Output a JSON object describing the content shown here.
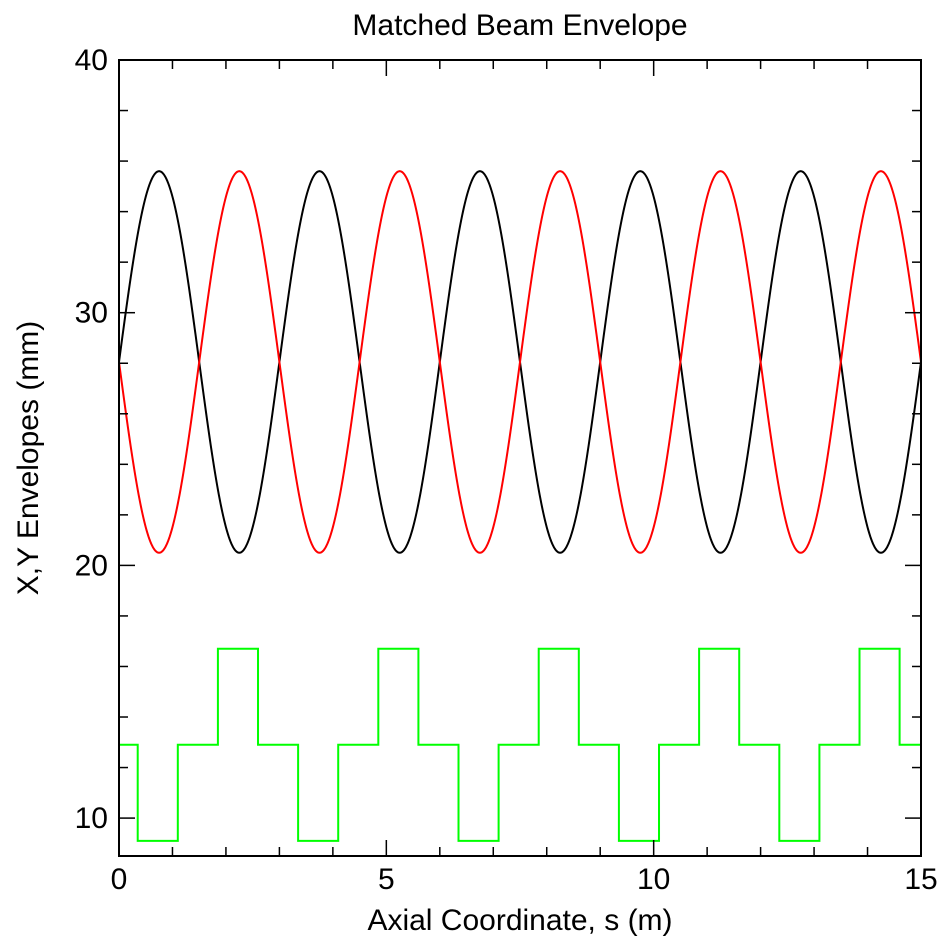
{
  "chart_data": {
    "type": "line",
    "title": "Matched Beam Envelope",
    "xlabel": "Axial Coordinate, s (m)",
    "ylabel": "X,Y Envelopes (mm)",
    "xlim": [
      0,
      15
    ],
    "ylim": [
      8.5,
      40
    ],
    "x_major_ticks": [
      0,
      5,
      10,
      15
    ],
    "x_minor_ticks": [
      1,
      2,
      3,
      4,
      6,
      7,
      8,
      9,
      11,
      12,
      13,
      14
    ],
    "y_major_ticks": [
      10,
      20,
      30,
      40
    ],
    "y_minor_ticks": [
      12,
      14,
      16,
      18,
      22,
      24,
      26,
      28,
      32,
      34,
      36,
      38
    ],
    "x_tick_labels": [
      "0",
      "5",
      "10",
      "15"
    ],
    "y_tick_labels": [
      "10",
      "20",
      "30",
      "40"
    ],
    "grid": false,
    "series": [
      {
        "color": "#000000",
        "style": "sinusoid",
        "mean": 28.05,
        "amplitude": 7.55,
        "period": 3.0,
        "peak_x": [
          0.75,
          3.75,
          6.75,
          9.75,
          12.75
        ],
        "trough_x": [
          2.25,
          5.25,
          8.25,
          11.25,
          14.25
        ],
        "max": 35.6,
        "min": 20.5
      },
      {
        "color": "#ff0000",
        "style": "sinusoid",
        "mean": 28.05,
        "amplitude": 7.55,
        "period": 3.0,
        "peak_x": [
          2.25,
          5.25,
          8.25,
          11.25,
          14.25
        ],
        "trough_x": [
          0.75,
          3.75,
          6.75,
          9.75,
          12.75
        ],
        "max": 35.6,
        "min": 20.5
      },
      {
        "color": "#00ff00",
        "style": "step",
        "x": [
          0,
          0.35,
          0.35,
          1.1,
          1.1,
          1.85,
          1.85,
          2.6,
          2.6,
          3.35,
          3.35,
          4.1,
          4.1,
          4.85,
          4.85,
          5.6,
          5.6,
          6.35,
          6.35,
          7.1,
          7.1,
          7.85,
          7.85,
          8.6,
          8.6,
          9.35,
          9.35,
          10.1,
          10.1,
          10.85,
          10.85,
          11.6,
          11.6,
          12.35,
          12.35,
          13.1,
          13.1,
          13.85,
          13.85,
          14.6,
          14.6,
          15
        ],
        "y": [
          12.9,
          12.9,
          9.1,
          9.1,
          12.9,
          12.9,
          16.7,
          16.7,
          12.9,
          12.9,
          9.1,
          9.1,
          12.9,
          12.9,
          16.7,
          16.7,
          12.9,
          12.9,
          9.1,
          9.1,
          12.9,
          12.9,
          16.7,
          16.7,
          12.9,
          12.9,
          9.1,
          9.1,
          12.9,
          12.9,
          16.7,
          16.7,
          12.9,
          12.9,
          9.1,
          9.1,
          12.9,
          12.9,
          16.7,
          16.7,
          12.9,
          12.9
        ]
      }
    ]
  }
}
